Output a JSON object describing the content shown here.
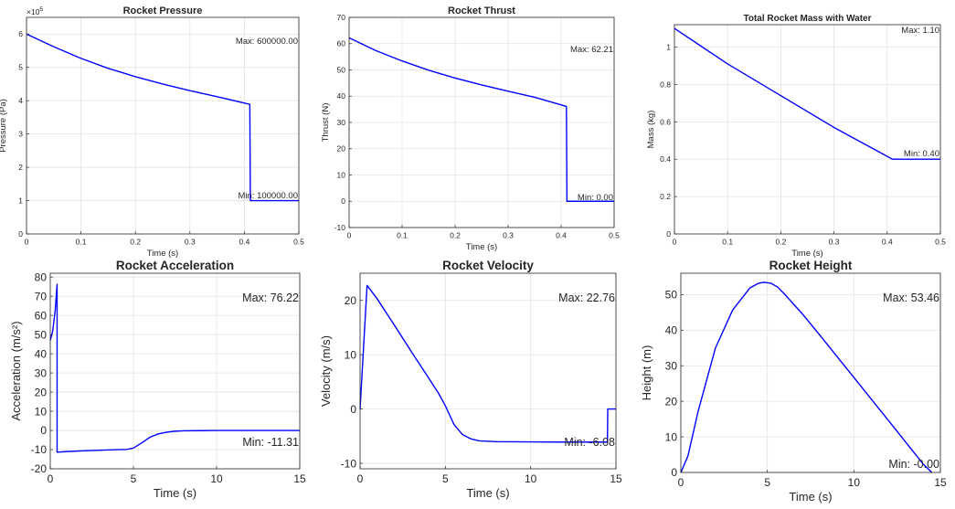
{
  "chart_data": [
    {
      "type": "line",
      "title": "Rocket Pressure",
      "xlabel": "Time (s)",
      "ylabel": "Pressure (Pa)",
      "exponent": "5",
      "xlim": [
        0,
        0.5
      ],
      "ylim": [
        0,
        6.5
      ],
      "xticks": [
        0,
        0.1,
        0.2,
        0.3,
        0.4,
        0.5
      ],
      "xtick_labels": [
        "0",
        "0.1",
        "0.2",
        "0.3",
        "0.4",
        "0.5"
      ],
      "yticks": [
        0,
        1,
        2,
        3,
        4,
        5,
        6
      ],
      "ytick_labels": [
        "0",
        "1",
        "2",
        "3",
        "4",
        "5",
        "6"
      ],
      "grid": true,
      "series": [
        {
          "color": "#0000ff",
          "x": [
            0,
            0.05,
            0.1,
            0.15,
            0.2,
            0.25,
            0.3,
            0.35,
            0.41,
            0.411,
            0.5
          ],
          "y": [
            6.0,
            5.62,
            5.27,
            4.97,
            4.72,
            4.5,
            4.3,
            4.12,
            3.89,
            1.0,
            1.0
          ]
        }
      ],
      "annotations": [
        {
          "text": "Max: 600000.00",
          "position": "upper-right"
        },
        {
          "text": "Min: 100000.00",
          "position": "lower-right"
        }
      ]
    },
    {
      "type": "line",
      "title": "Rocket Thrust",
      "xlabel": "Time (s)",
      "ylabel": "Thrust (N)",
      "xlim": [
        0,
        0.5
      ],
      "ylim": [
        -10,
        70
      ],
      "xticks": [
        0,
        0.1,
        0.2,
        0.3,
        0.4,
        0.5
      ],
      "xtick_labels": [
        "0",
        "0.1",
        "0.2",
        "0.3",
        "0.4",
        "0.5"
      ],
      "yticks": [
        -10,
        0,
        10,
        20,
        30,
        40,
        50,
        60,
        70
      ],
      "ytick_labels": [
        "-10",
        "0",
        "10",
        "20",
        "30",
        "40",
        "50",
        "60",
        "70"
      ],
      "grid": true,
      "series": [
        {
          "color": "#0000ff",
          "x": [
            0,
            0.05,
            0.1,
            0.15,
            0.2,
            0.25,
            0.3,
            0.35,
            0.41,
            0.411,
            0.5
          ],
          "y": [
            62.2,
            57.4,
            53.4,
            49.9,
            46.9,
            44.3,
            41.9,
            39.6,
            36.1,
            0,
            0
          ]
        }
      ],
      "annotations": [
        {
          "text": "Max: 62.21",
          "position": "upper-right"
        },
        {
          "text": "Min: 0.00",
          "position": "lower-right"
        }
      ]
    },
    {
      "type": "line",
      "title": "Total Rocket Mass with Water",
      "xlabel": "Time (s)",
      "ylabel": "Mass (kg)",
      "xlim": [
        0,
        0.5
      ],
      "ylim": [
        0,
        1.12
      ],
      "xticks": [
        0,
        0.1,
        0.2,
        0.3,
        0.4,
        0.5
      ],
      "xtick_labels": [
        "0",
        "0.1",
        "0.2",
        "0.3",
        "0.4",
        "0.5"
      ],
      "yticks": [
        0,
        0.2,
        0.4,
        0.6,
        0.8,
        1
      ],
      "ytick_labels": [
        "0",
        "0.2",
        "0.4",
        "0.6",
        "0.8",
        "1"
      ],
      "grid": true,
      "series": [
        {
          "color": "#0000ff",
          "x": [
            0,
            0.1,
            0.2,
            0.3,
            0.41,
            0.5
          ],
          "y": [
            1.1,
            0.91,
            0.74,
            0.57,
            0.4,
            0.4
          ]
        }
      ],
      "annotations": [
        {
          "text": "Max: 1.10",
          "position": "upper-right"
        },
        {
          "text": "Min: 0.40",
          "position": "lower-right"
        }
      ]
    },
    {
      "type": "line",
      "title": "Rocket Acceleration",
      "xlabel": "Time (s)",
      "ylabel": "Acceleration (m/s²)",
      "xlim": [
        0,
        15
      ],
      "ylim": [
        -20,
        82
      ],
      "xticks": [
        0,
        5,
        10,
        15
      ],
      "xtick_labels": [
        "0",
        "5",
        "10",
        "15"
      ],
      "yticks": [
        -20,
        -10,
        0,
        10,
        20,
        30,
        40,
        50,
        60,
        70,
        80
      ],
      "ytick_labels": [
        "-20",
        "-10",
        "0",
        "10",
        "20",
        "30",
        "40",
        "50",
        "60",
        "70",
        "80"
      ],
      "grid": true,
      "series": [
        {
          "color": "#0000ff",
          "x": [
            0,
            0.15,
            0.3,
            0.41,
            0.411,
            1,
            2,
            3,
            4,
            4.6,
            5,
            5.5,
            6,
            6.5,
            7,
            7.5,
            8,
            9,
            10,
            12,
            15
          ],
          "y": [
            47,
            52,
            63,
            76.22,
            -11.31,
            -11.0,
            -10.6,
            -10.3,
            -10.0,
            -9.9,
            -9.2,
            -6.5,
            -3.5,
            -1.8,
            -0.9,
            -0.4,
            -0.2,
            -0.1,
            0,
            0,
            0
          ]
        }
      ],
      "annotations": [
        {
          "text": "Max: 76.22",
          "position": "upper-right"
        },
        {
          "text": "Min: -11.31",
          "position": "lower-right"
        }
      ]
    },
    {
      "type": "line",
      "title": "Rocket Velocity",
      "xlabel": "Time (s)",
      "ylabel": "Velocity (m/s)",
      "xlim": [
        0,
        15
      ],
      "ylim": [
        -11,
        25
      ],
      "xticks": [
        0,
        5,
        10,
        15
      ],
      "xtick_labels": [
        "0",
        "5",
        "10",
        "15"
      ],
      "yticks": [
        -10,
        0,
        10,
        20
      ],
      "ytick_labels": [
        "-10",
        "0",
        "10",
        "20"
      ],
      "grid": true,
      "series": [
        {
          "color": "#0000ff",
          "x": [
            0,
            0.41,
            1,
            2,
            3,
            4,
            4.6,
            5,
            5.5,
            6,
            6.5,
            7,
            8,
            10,
            12,
            14.5,
            14.52,
            15
          ],
          "y": [
            0,
            22.76,
            20.3,
            15.5,
            10.6,
            5.8,
            2.9,
            0.6,
            -2.8,
            -4.7,
            -5.5,
            -5.85,
            -6.0,
            -6.05,
            -6.08,
            -6.08,
            0,
            0
          ]
        }
      ],
      "annotations": [
        {
          "text": "Max: 22.76",
          "position": "upper-right"
        },
        {
          "text": "Min: -6.08",
          "position": "lower-right"
        }
      ]
    },
    {
      "type": "line",
      "title": "Rocket Height",
      "xlabel": "Time (s)",
      "ylabel": "Height (m)",
      "xlim": [
        0,
        15
      ],
      "ylim": [
        0,
        56
      ],
      "xticks": [
        0,
        5,
        10,
        15
      ],
      "xtick_labels": [
        "0",
        "5",
        "10",
        "15"
      ],
      "yticks": [
        0,
        10,
        20,
        30,
        40,
        50
      ],
      "ytick_labels": [
        "0",
        "10",
        "20",
        "30",
        "40",
        "50"
      ],
      "grid": true,
      "series": [
        {
          "color": "#0000ff",
          "x": [
            0,
            0.41,
            1,
            2,
            3,
            4,
            4.5,
            4.8,
            5.2,
            5.6,
            6,
            7,
            8,
            10,
            12,
            14,
            14.5
          ],
          "y": [
            0,
            4.6,
            17.2,
            35.0,
            45.7,
            51.9,
            53.2,
            53.46,
            53.2,
            52.1,
            50.1,
            44.7,
            38.8,
            26.7,
            14.6,
            2.4,
            0
          ]
        }
      ],
      "annotations": [
        {
          "text": "Max: 53.46",
          "position": "upper-right"
        },
        {
          "text": "Min: -0.00",
          "position": "lower-right"
        }
      ]
    }
  ]
}
